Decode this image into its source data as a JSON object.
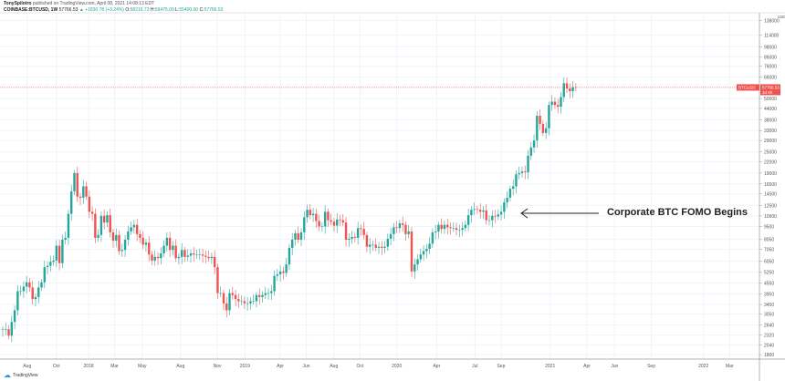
{
  "header": {
    "author": "TonySpilotro",
    "published": "published on TradingView.com, April 08, 2021 14:08:13 EDT",
    "symbol": "COINBASE:BTCUSD, 1W",
    "last": "57766.53",
    "change": "▲ +1830.78 (+3.24%)",
    "o_label": "O:",
    "o": "58216.73",
    "h_label": "H:",
    "h": "59475.00",
    "l_label": "L:",
    "l": "55400.00",
    "c_label": "C:",
    "c": "57766.53"
  },
  "logo": "TradingView",
  "colors": {
    "up": "#26a69a",
    "down": "#ef5350",
    "grid": "#f0f3fa"
  },
  "chart_data": {
    "type": "candlestick",
    "scale": "log",
    "currency": "USD",
    "price_label": {
      "symbol": "BTCUSD",
      "value": "57766.53",
      "countdown": "3d 6h"
    },
    "annotation": "Corporate BTC FOMO Begins",
    "y_ticks": [
      174000,
      138000,
      114000,
      98000,
      86000,
      76000,
      66000,
      50000,
      44000,
      38000,
      33000,
      29000,
      25000,
      22000,
      19000,
      16500,
      14500,
      12500,
      10900,
      9500,
      8050,
      7050,
      6050,
      5250,
      4550,
      3950,
      3450,
      3050,
      2640,
      2320,
      2040,
      1800
    ],
    "x_ticks": [
      {
        "label": "Aug",
        "t": 2017.6
      },
      {
        "label": "Oct",
        "t": 2017.79
      },
      {
        "label": "2018",
        "t": 2018
      },
      {
        "label": "Mar",
        "t": 2018.17
      },
      {
        "label": "May",
        "t": 2018.35
      },
      {
        "label": "Aug",
        "t": 2018.6
      },
      {
        "label": "Nov",
        "t": 2018.84
      },
      {
        "label": "2019",
        "t": 2019.02
      },
      {
        "label": "Apr",
        "t": 2019.25
      },
      {
        "label": "Jun",
        "t": 2019.42
      },
      {
        "label": "Aug",
        "t": 2019.6
      },
      {
        "label": "Oct",
        "t": 2019.77
      },
      {
        "label": "2020",
        "t": 2020.01
      },
      {
        "label": "Apr",
        "t": 2020.27
      },
      {
        "label": "Jul",
        "t": 2020.52
      },
      {
        "label": "Sep",
        "t": 2020.69
      },
      {
        "label": "2021",
        "t": 2021.01
      },
      {
        "label": "Apr",
        "t": 2021.25
      },
      {
        "label": "Jun",
        "t": 2021.43
      },
      {
        "label": "Sep",
        "t": 2021.67
      },
      {
        "label": "2022",
        "t": 2022.01
      },
      {
        "label": "Mar",
        "t": 2022.18
      }
    ],
    "first_open": 2500,
    "weekly_closes": [
      2500,
      2500,
      2300,
      2750,
      3200,
      4100,
      4100,
      4350,
      4600,
      4300,
      3700,
      3800,
      4300,
      4600,
      5600,
      5700,
      6000,
      6100,
      7400,
      5900,
      8000,
      8200,
      11200,
      15000,
      19000,
      14000,
      13800,
      16000,
      14000,
      11500,
      11200,
      8200,
      8500,
      10900,
      10000,
      11000,
      8800,
      7900,
      8500,
      6900,
      7000,
      8000,
      8900,
      9400,
      9700,
      8600,
      8200,
      7500,
      7700,
      6600,
      6100,
      6400,
      6300,
      6700,
      7400,
      8200,
      7000,
      7400,
      6300,
      6400,
      7000,
      6400,
      6500,
      6700,
      6600,
      6600,
      6600,
      6500,
      6400,
      6300,
      6400,
      5600,
      4000,
      4000,
      3500,
      3200,
      4000,
      3900,
      3700,
      3600,
      3600,
      3500,
      3500,
      3600,
      3600,
      3900,
      3800,
      3900,
      4000,
      4000,
      4100,
      5000,
      5100,
      5300,
      5200,
      5800,
      7200,
      8000,
      8700,
      8000,
      8800,
      10700,
      11800,
      11000,
      11200,
      10200,
      9500,
      9500,
      11500,
      10300,
      10100,
      9600,
      10400,
      10300,
      10000,
      8000,
      8100,
      8300,
      8200,
      9300,
      9200,
      8500,
      7300,
      7500,
      7500,
      7200,
      7300,
      7200,
      7300,
      8100,
      8600,
      9400,
      9300,
      9900,
      9700,
      8600,
      8900,
      5300,
      5800,
      6200,
      6600,
      6900,
      7100,
      7600,
      8800,
      8900,
      9700,
      9200,
      9700,
      9400,
      9300,
      9300,
      9100,
      9100,
      9300,
      9700,
      11000,
      11800,
      11900,
      11800,
      11500,
      11700,
      10300,
      10300,
      10900,
      10800,
      11100,
      11500,
      13000,
      13800,
      15500,
      16000,
      18700,
      19000,
      19400,
      19200,
      23800,
      26500,
      29000,
      40000,
      36000,
      32000,
      34000,
      46000,
      48000,
      46000,
      45000,
      51000,
      61000,
      57000,
      55000,
      58000,
      57766.53
    ]
  }
}
